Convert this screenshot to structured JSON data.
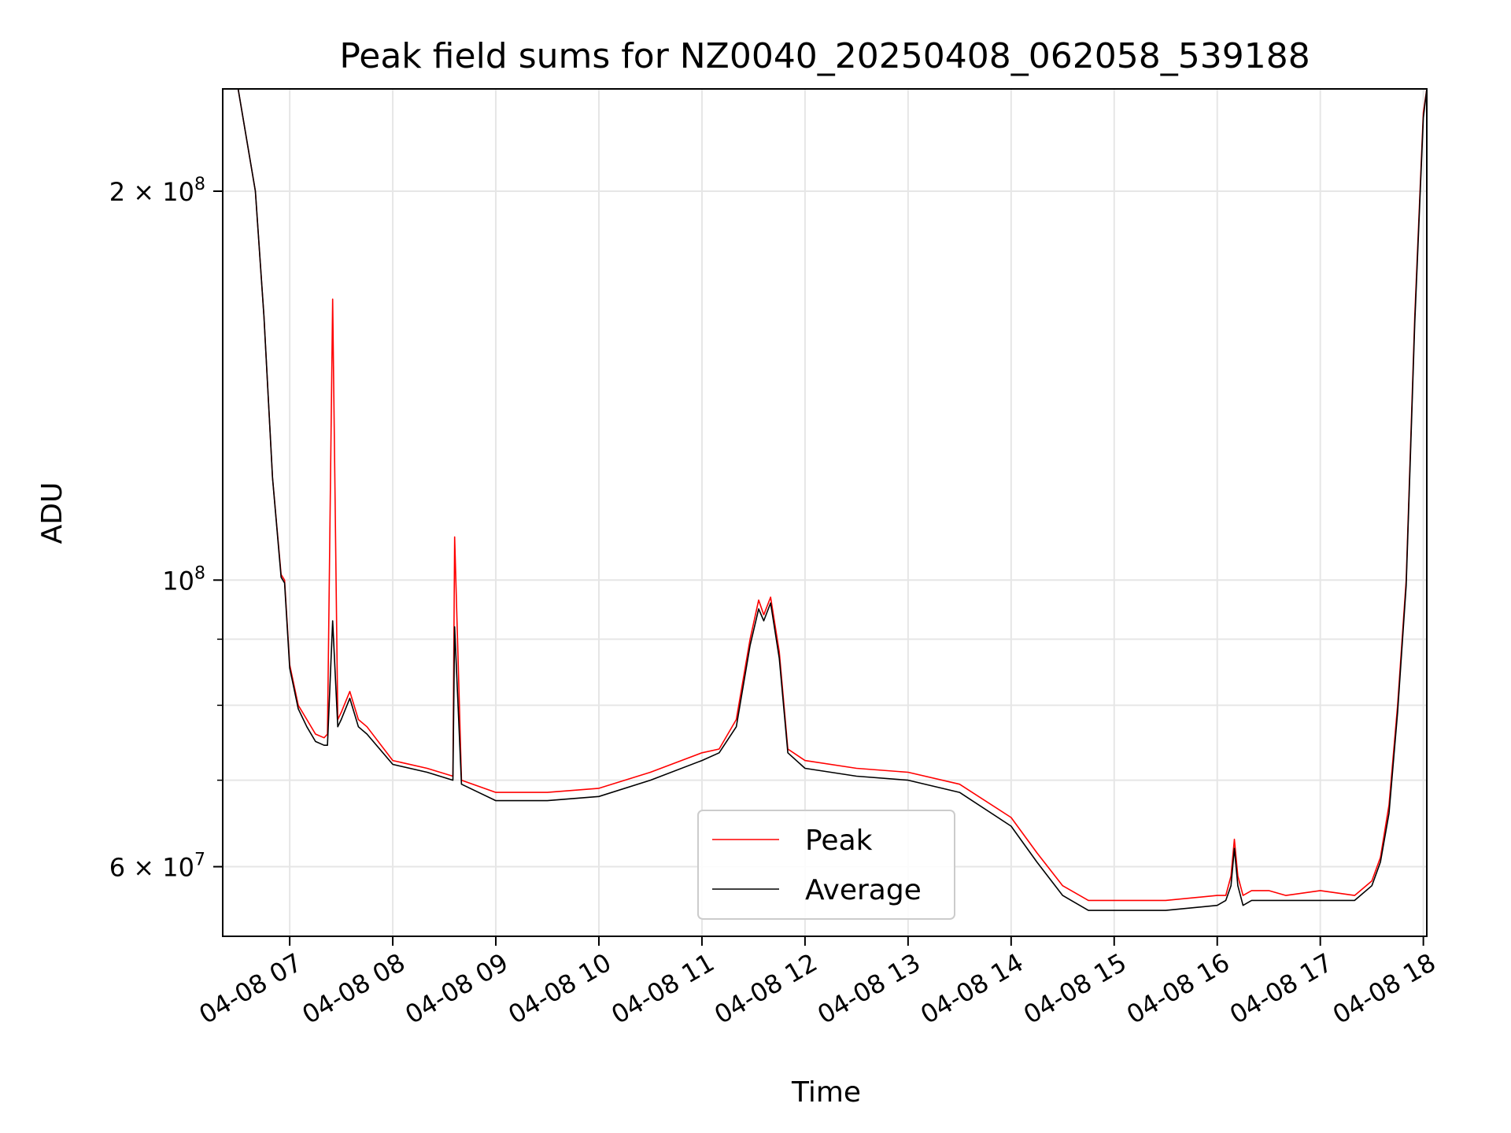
{
  "chart_data": {
    "type": "line",
    "title": "Peak field sums for NZ0040_20250408_062058_539188",
    "xlabel": "Time",
    "ylabel": "ADU",
    "y_scale": "log",
    "ylim": [
      53000000,
      240000000
    ],
    "xlim": [
      "04-08 06:21",
      "04-08 18:02"
    ],
    "grid": true,
    "legend_position": "lower center",
    "x_tick_labels": [
      "04-08 07",
      "04-08 08",
      "04-08 09",
      "04-08 10",
      "04-08 11",
      "04-08 12",
      "04-08 13",
      "04-08 14",
      "04-08 15",
      "04-08 16",
      "04-08 17",
      "04-08 18"
    ],
    "y_tick_labels": [
      {
        "value": 200000000,
        "base": "2 × 10",
        "exp": "8"
      },
      {
        "value": 100000000,
        "base": "10",
        "exp": "8"
      },
      {
        "value": 60000000,
        "base": "6 × 10",
        "exp": "7"
      }
    ],
    "x_time_labels": [
      "04-08 06:21",
      "04-08 06:30",
      "04-08 06:40",
      "04-08 06:45",
      "04-08 06:50",
      "04-08 06:55",
      "04-08 06:57",
      "04-08 07:00",
      "04-08 07:05",
      "04-08 07:10",
      "04-08 07:15",
      "04-08 07:20",
      "04-08 07:22",
      "04-08 07:25",
      "04-08 07:28",
      "04-08 07:30",
      "04-08 07:35",
      "04-08 07:40",
      "04-08 07:45",
      "04-08 08:00",
      "04-08 08:20",
      "04-08 08:35",
      "04-08 08:36",
      "04-08 08:40",
      "04-08 09:00",
      "04-08 09:30",
      "04-08 10:00",
      "04-08 10:30",
      "04-08 11:00",
      "04-08 11:10",
      "04-08 11:20",
      "04-08 11:28",
      "04-08 11:33",
      "04-08 11:36",
      "04-08 11:40",
      "04-08 11:45",
      "04-08 11:50",
      "04-08 12:00",
      "04-08 12:30",
      "04-08 13:00",
      "04-08 13:30",
      "04-08 14:00",
      "04-08 14:15",
      "04-08 14:30",
      "04-08 14:45",
      "04-08 15:00",
      "04-08 15:30",
      "04-08 16:00",
      "04-08 16:05",
      "04-08 16:08",
      "04-08 16:10",
      "04-08 16:12",
      "04-08 16:15",
      "04-08 16:20",
      "04-08 16:30",
      "04-08 16:40",
      "04-08 17:00",
      "04-08 17:20",
      "04-08 17:30",
      "04-08 17:35",
      "04-08 17:40",
      "04-08 17:45",
      "04-08 17:50",
      "04-08 17:55",
      "04-08 18:00",
      "04-08 18:02"
    ],
    "series": [
      {
        "name": "Peak",
        "color": "#ff0000",
        "values": [
          240000000,
          240000000,
          200000000,
          160000000,
          120000000,
          101000000,
          100000000,
          86000000,
          80000000,
          78000000,
          76000000,
          75500000,
          76000000,
          165000000,
          78000000,
          79000000,
          82000000,
          78000000,
          77000000,
          72500000,
          71500000,
          70500000,
          108000000,
          70000000,
          68500000,
          68500000,
          69000000,
          71000000,
          73500000,
          74000000,
          78000000,
          90000000,
          96500000,
          94000000,
          97000000,
          88000000,
          74000000,
          72500000,
          71500000,
          71000000,
          69500000,
          65500000,
          61500000,
          58000000,
          56500000,
          56500000,
          56500000,
          57000000,
          57000000,
          59000000,
          63000000,
          59000000,
          57000000,
          57500000,
          57500000,
          57000000,
          57500000,
          57000000,
          58500000,
          61000000,
          67000000,
          80000000,
          100000000,
          160000000,
          230000000,
          240000000
        ]
      },
      {
        "name": "Average",
        "color": "#000000",
        "values": [
          240000000,
          240000000,
          200000000,
          160000000,
          120000000,
          100500000,
          99500000,
          85500000,
          79500000,
          77000000,
          75000000,
          74500000,
          74500000,
          93000000,
          77000000,
          78000000,
          81000000,
          77000000,
          76000000,
          72000000,
          71000000,
          70000000,
          92000000,
          69500000,
          67500000,
          67500000,
          68000000,
          70000000,
          72500000,
          73500000,
          77000000,
          89000000,
          95000000,
          93000000,
          96000000,
          87000000,
          73500000,
          71500000,
          70500000,
          70000000,
          68500000,
          64500000,
          60500000,
          57000000,
          55500000,
          55500000,
          55500000,
          56000000,
          56500000,
          58000000,
          62000000,
          58000000,
          56000000,
          56500000,
          56500000,
          56500000,
          56500000,
          56500000,
          58000000,
          60500000,
          66000000,
          79000000,
          99000000,
          158000000,
          228000000,
          240000000
        ]
      }
    ]
  }
}
